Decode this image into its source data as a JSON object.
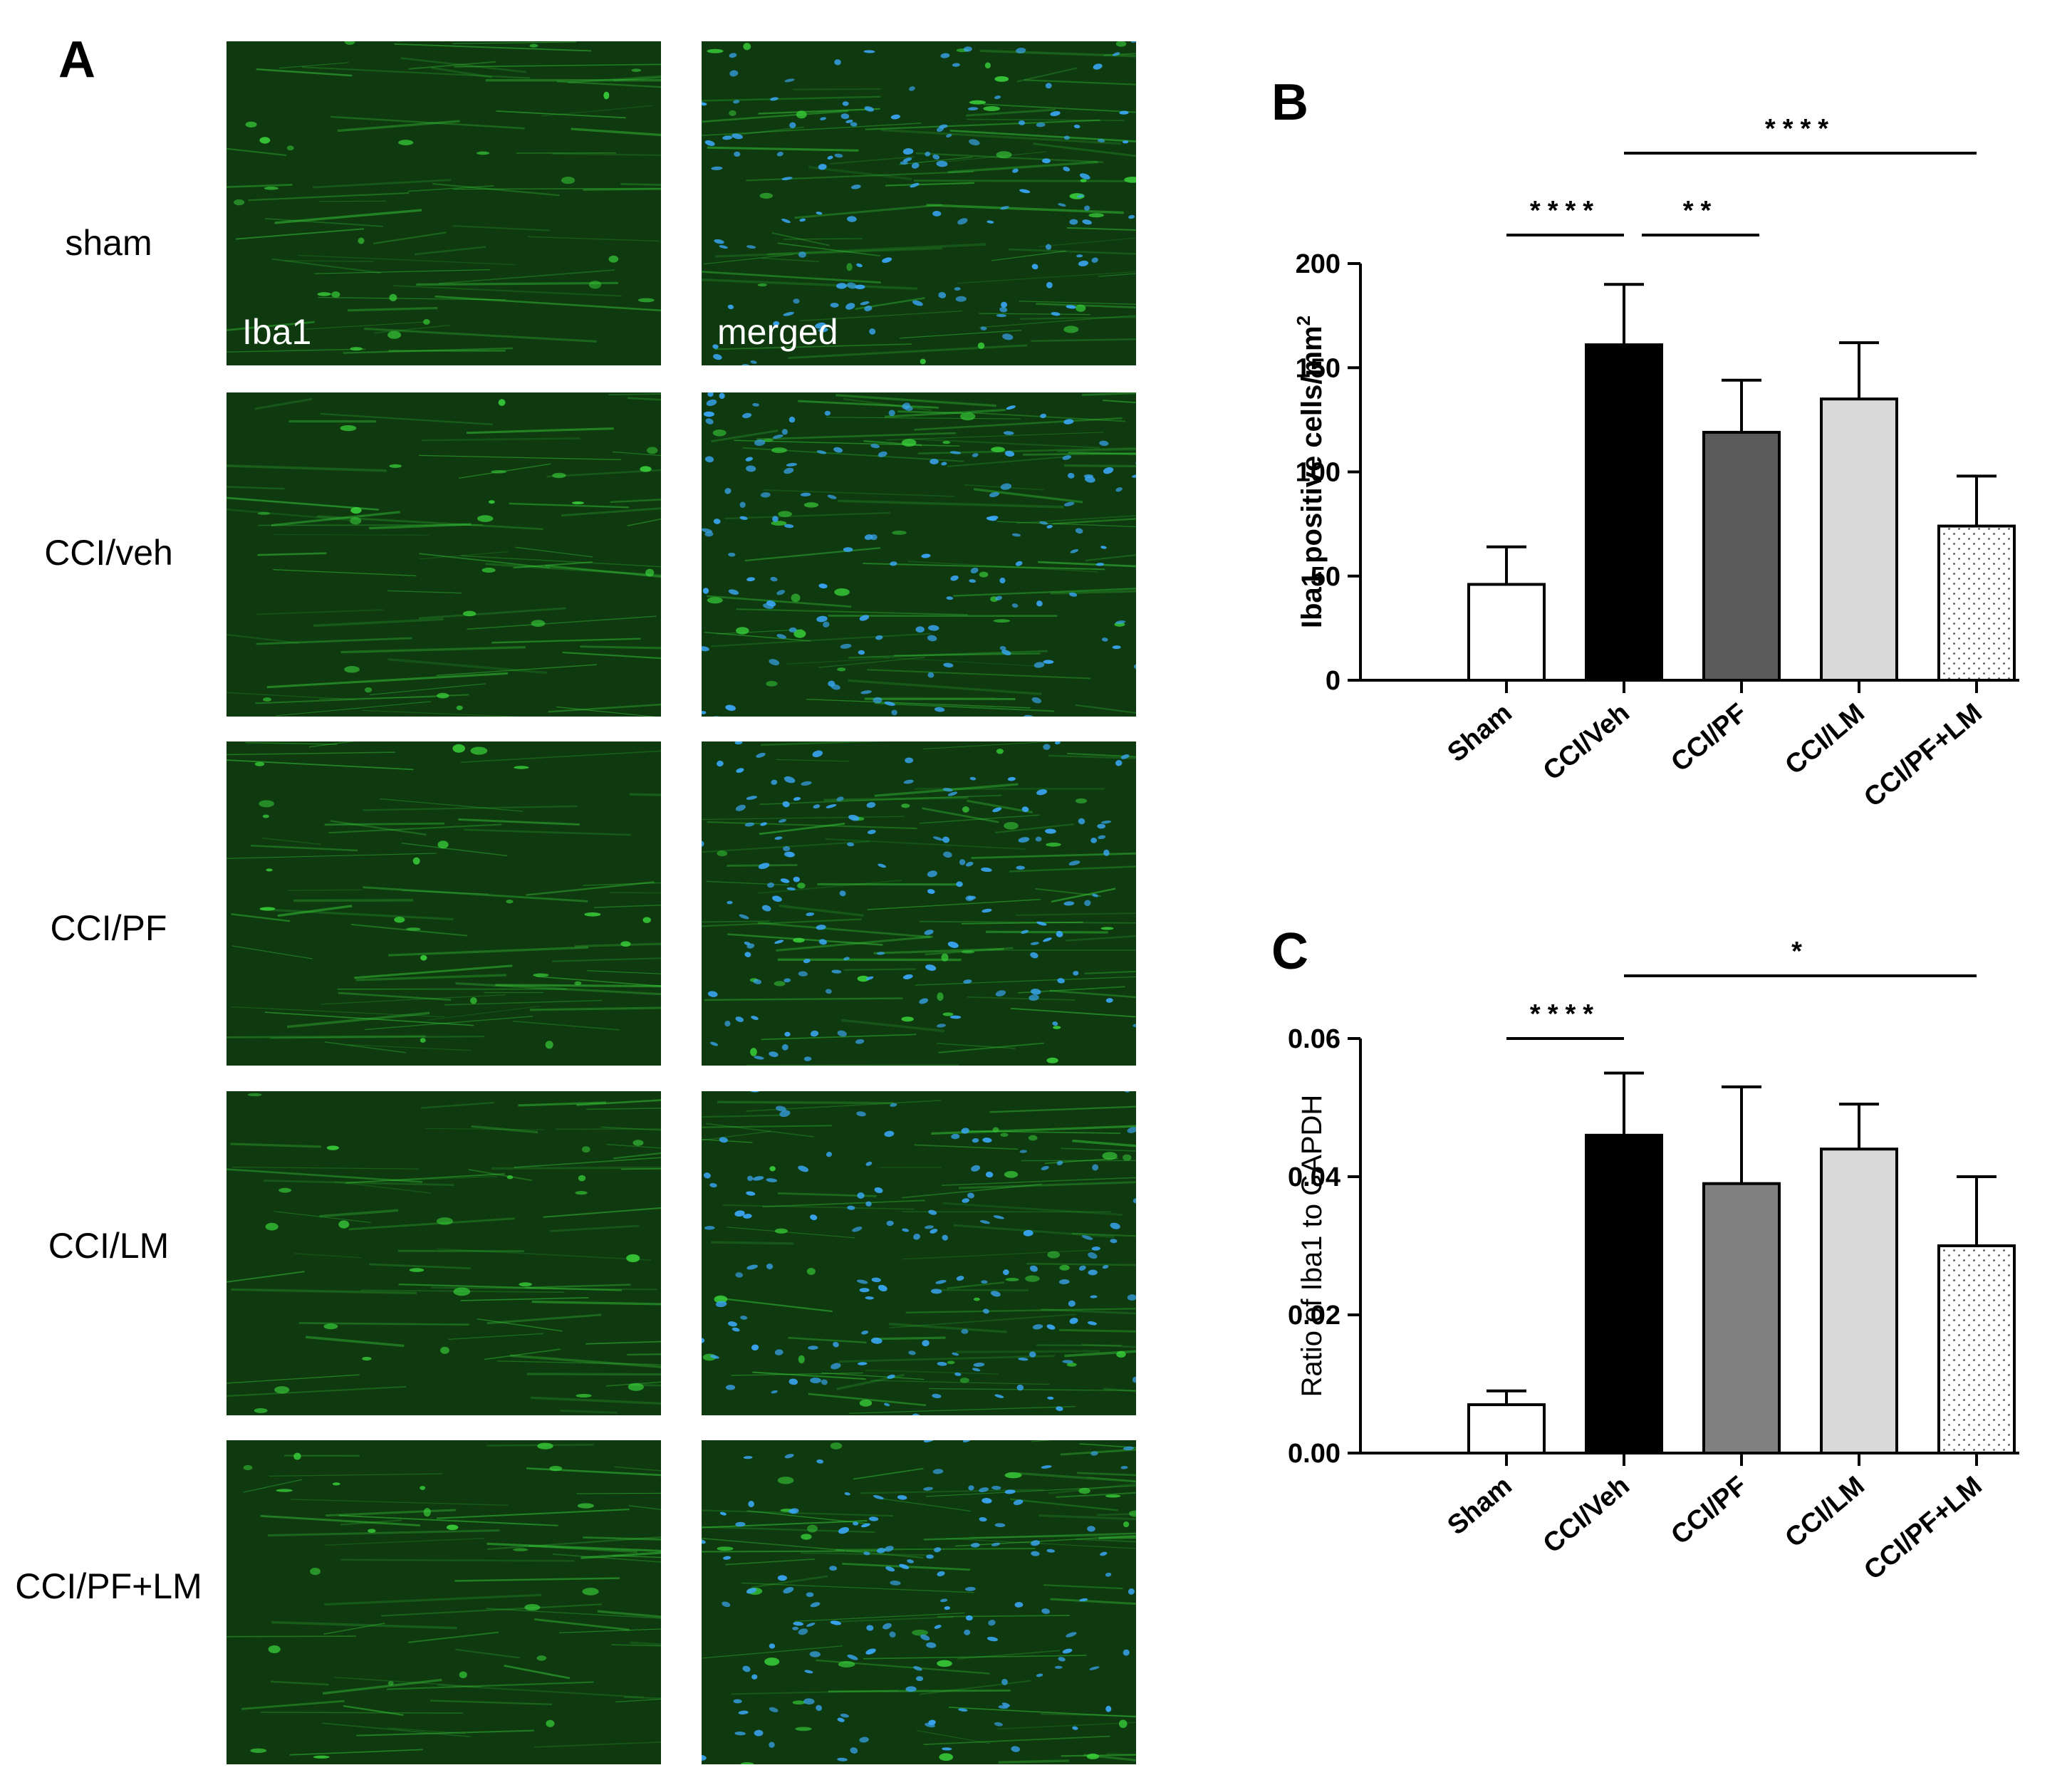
{
  "panel_labels": {
    "a": "A",
    "b": "B",
    "c": "C"
  },
  "micrographs": {
    "rows": [
      "sham",
      "CCI/veh",
      "CCI/PF",
      "CCI/LM",
      "CCI/PF+LM"
    ],
    "stain_label": "Iba1",
    "merged_label": "merged",
    "colors": {
      "iba1": "#39d13a",
      "nuclei": "#3aa7f5",
      "background": "#0f3a10"
    }
  },
  "chart_data": [
    {
      "type": "bar",
      "panel": "B",
      "categories": [
        "Sham",
        "CCI/Veh",
        "CCI/PF",
        "CCI/LM",
        "CCI/PF+LM"
      ],
      "values": [
        46,
        161,
        119,
        135,
        74
      ],
      "errors": [
        18,
        29,
        25,
        27,
        24
      ],
      "bar_fills": [
        "#ffffff",
        "#000000",
        "#5a5a5a",
        "#d9d9d9",
        "dots"
      ],
      "ylabel": "Iba1 positive cells/mm",
      "ylabel_superscript": "2",
      "ylim": [
        0,
        200
      ],
      "yticks": [
        "0",
        "50",
        "100",
        "150",
        "200"
      ],
      "significance": [
        {
          "from": 0,
          "to": 1,
          "label": "****"
        },
        {
          "from": 1,
          "to": 2,
          "label": "**"
        },
        {
          "from": 1,
          "to": 4,
          "label": "****"
        }
      ]
    },
    {
      "type": "bar",
      "panel": "C",
      "categories": [
        "Sham",
        "CCI/Veh",
        "CCI/PF",
        "CCI/LM",
        "CCI/PF+LM"
      ],
      "values": [
        0.007,
        0.046,
        0.039,
        0.044,
        0.03
      ],
      "errors": [
        0.002,
        0.009,
        0.014,
        0.0065,
        0.01
      ],
      "bar_fills": [
        "#ffffff",
        "#000000",
        "#808080",
        "#d9d9d9",
        "dots"
      ],
      "ylabel": "Ratio of Iba1 to GAPDH",
      "ylim": [
        0,
        0.06
      ],
      "yticks": [
        "0.00",
        "0.02",
        "0.04",
        "0.06"
      ],
      "significance": [
        {
          "from": 0,
          "to": 1,
          "label": "****"
        },
        {
          "from": 1,
          "to": 4,
          "label": "*"
        }
      ]
    }
  ]
}
